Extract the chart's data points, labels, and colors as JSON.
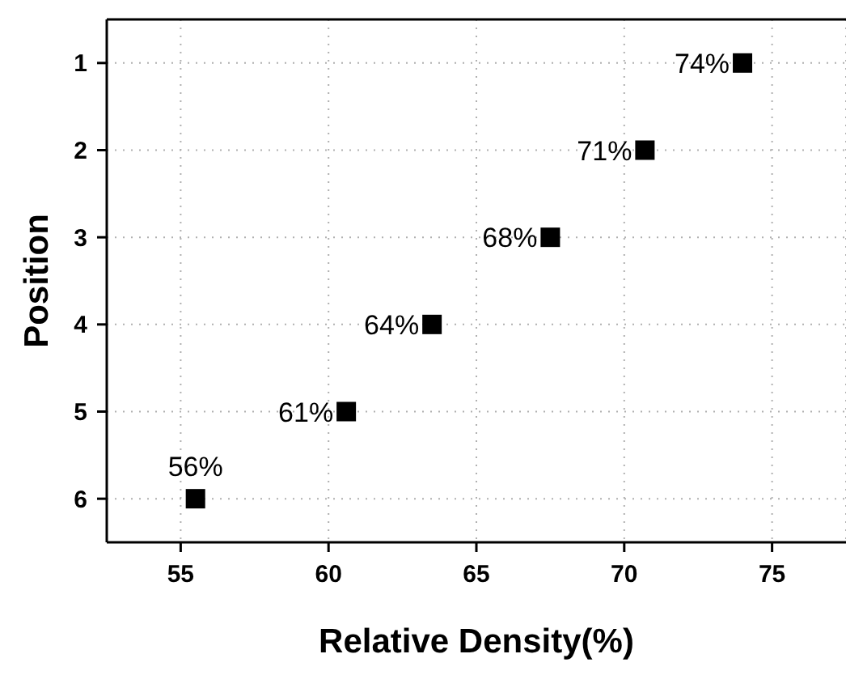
{
  "chart_data": {
    "type": "scatter",
    "xlabel": "Relative Density(%)",
    "ylabel": "Position",
    "x": [
      74,
      70.7,
      67.5,
      63.5,
      60.6,
      55.5
    ],
    "values": [
      1,
      2,
      3,
      4,
      5,
      6
    ],
    "annotations": [
      {
        "text": "74%",
        "x": 74,
        "y": 1
      },
      {
        "text": "71%",
        "x": 70.7,
        "y": 2
      },
      {
        "text": "68%",
        "x": 67.5,
        "y": 3
      },
      {
        "text": "64%",
        "x": 63.5,
        "y": 4
      },
      {
        "text": "61%",
        "x": 60.6,
        "y": 5
      },
      {
        "text": "56%",
        "x": 55.5,
        "y": 6
      }
    ],
    "color": "#000000",
    "marker": "square",
    "grid": true,
    "xlim": [
      52.5,
      77.5
    ],
    "xticks": [
      55,
      60,
      65,
      70,
      75
    ],
    "ylim": [
      6.5,
      0.5
    ],
    "yticks": [
      1,
      2,
      3,
      4,
      5,
      6
    ]
  }
}
